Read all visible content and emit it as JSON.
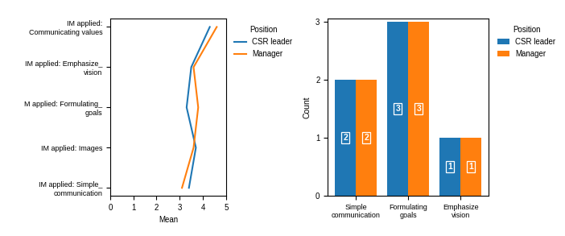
{
  "chart_data": [
    {
      "type": "line",
      "orientation": "horizontal",
      "xlabel": "Mean",
      "categories": [
        "IM applied:\nCommunicating values",
        "IM applied: Emphasize_\nvision",
        "M applied: Formulating_\ngoals",
        "IM applied: Images",
        "IM applied: Simple_\ncommunication"
      ],
      "series": [
        {
          "name": "CSR leader",
          "values": [
            4.3,
            3.5,
            3.3,
            3.7,
            3.4
          ]
        },
        {
          "name": "Manager",
          "values": [
            4.6,
            3.6,
            3.8,
            3.6,
            3.1
          ]
        }
      ],
      "xlim": [
        0,
        5
      ],
      "xticks": [
        0,
        1,
        2,
        3,
        4,
        5
      ],
      "grid": false,
      "legend": "upper left",
      "legend_title": "Position"
    },
    {
      "type": "bar",
      "ylabel": "Count",
      "categories": [
        "Simple\ncommunication",
        "Formulating\ngoals",
        "Emphasize\nvision"
      ],
      "series": [
        {
          "name": "CSR leader",
          "values": [
            2,
            3,
            1
          ]
        },
        {
          "name": "Manager",
          "values": [
            2,
            3,
            1
          ]
        }
      ],
      "ylim": [
        0,
        3.05
      ],
      "yticks": [
        0,
        1,
        2,
        3
      ],
      "grid": false,
      "data_labels": true,
      "legend": "upper left",
      "legend_title": "Position"
    }
  ]
}
